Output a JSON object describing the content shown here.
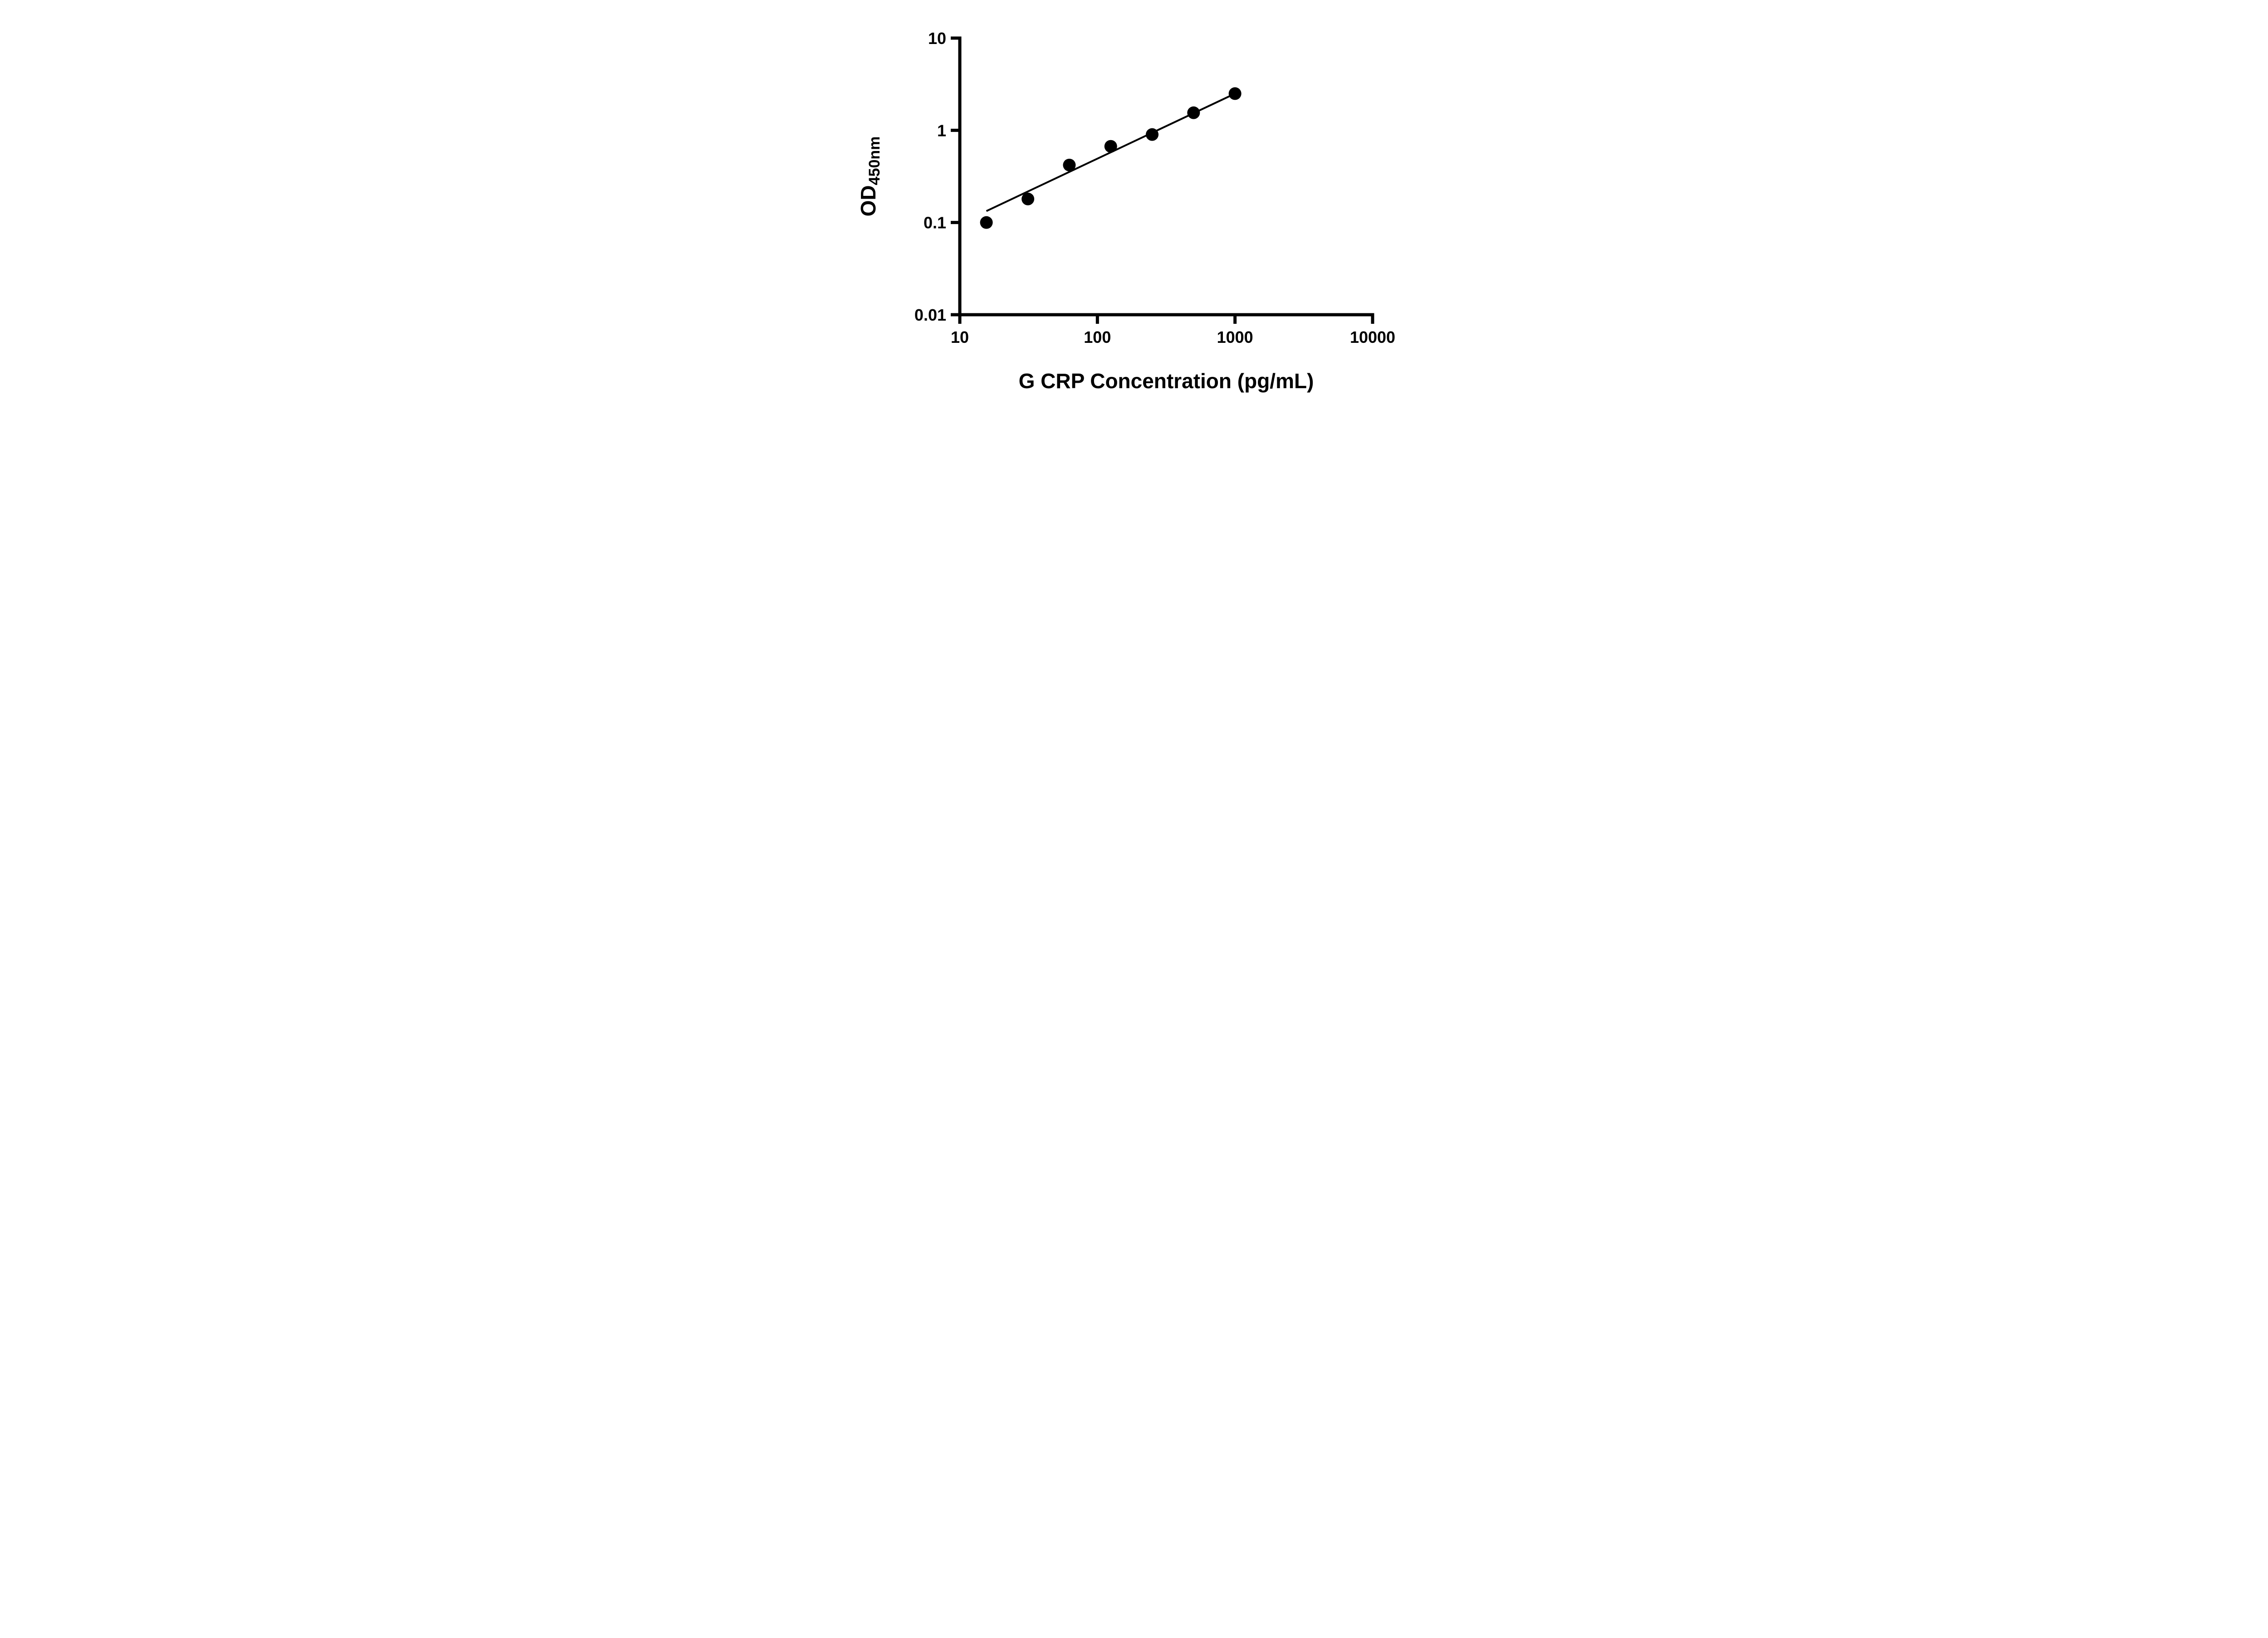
{
  "chart_data": {
    "type": "scatter",
    "title": "",
    "xlabel": "G CRP Concentration (pg/mL)",
    "ylabel_main": "OD",
    "ylabel_sub": "450nm",
    "x_scale": "log",
    "y_scale": "log",
    "xlim": [
      10,
      10000
    ],
    "ylim": [
      0.01,
      10
    ],
    "x_ticks": [
      10,
      100,
      1000,
      10000
    ],
    "x_tick_labels": [
      "10",
      "100",
      "1000",
      "10000"
    ],
    "y_ticks": [
      0.01,
      0.1,
      1,
      10
    ],
    "y_tick_labels": [
      "0.01",
      "0.1",
      "1",
      "10"
    ],
    "grid": false,
    "legend": null,
    "series": [
      {
        "name": "standard-curve-points",
        "type": "scatter",
        "x": [
          15.6,
          31.25,
          62.5,
          125,
          250,
          500,
          1000
        ],
        "y": [
          0.1,
          0.18,
          0.42,
          0.67,
          0.9,
          1.55,
          2.5
        ],
        "marker": "circle",
        "marker_color": "#000000"
      }
    ],
    "trend_line": {
      "x": [
        15.6,
        1000
      ],
      "y": [
        0.133,
        2.5
      ],
      "color": "#000000"
    },
    "axis_color": "#000000"
  }
}
